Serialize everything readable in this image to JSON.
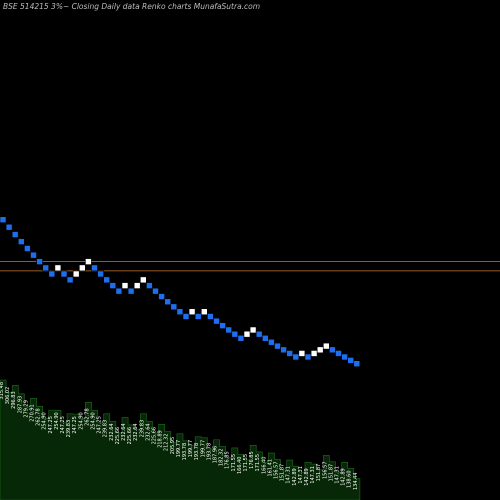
{
  "header": {
    "title": "BSE 514215 3%~  Closing Daily data  Renko  charts MunafaSutra.com"
  },
  "colors": {
    "background": "#000000",
    "brick_down": "#1e6ff0",
    "brick_up": "#ffffff",
    "reference_line": "#c87832",
    "volume_fill": "#062806",
    "volume_stroke": "#1f6a1f"
  },
  "chart_data": {
    "type": "renko",
    "brick_size_percent": 3,
    "price_range": [
      98,
      420
    ],
    "reference_lines": [
      {
        "value": 263.5
      },
      {
        "value": 251.5
      }
    ],
    "bricks": [
      {
        "dir": "down",
        "value": 315.48
      },
      {
        "dir": "down",
        "value": 306.02
      },
      {
        "dir": "down",
        "value": 296.83
      },
      {
        "dir": "down",
        "value": 287.93
      },
      {
        "dir": "down",
        "value": 279.29
      },
      {
        "dir": "down",
        "value": 270.91
      },
      {
        "dir": "down",
        "value": 262.78
      },
      {
        "dir": "down",
        "value": 254.9
      },
      {
        "dir": "down",
        "value": 247.25
      },
      {
        "dir": "up",
        "value": 254.9
      },
      {
        "dir": "down",
        "value": 247.25
      },
      {
        "dir": "down",
        "value": 239.83
      },
      {
        "dir": "up",
        "value": 247.25
      },
      {
        "dir": "up",
        "value": 254.9
      },
      {
        "dir": "up",
        "value": 262.78
      },
      {
        "dir": "down",
        "value": 254.9
      },
      {
        "dir": "down",
        "value": 247.25
      },
      {
        "dir": "down",
        "value": 239.83
      },
      {
        "dir": "down",
        "value": 232.64
      },
      {
        "dir": "down",
        "value": 225.66
      },
      {
        "dir": "up",
        "value": 232.64
      },
      {
        "dir": "down",
        "value": 225.66
      },
      {
        "dir": "up",
        "value": 232.64
      },
      {
        "dir": "up",
        "value": 239.83
      },
      {
        "dir": "down",
        "value": 232.64
      },
      {
        "dir": "down",
        "value": 225.66
      },
      {
        "dir": "down",
        "value": 218.89
      },
      {
        "dir": "down",
        "value": 212.32
      },
      {
        "dir": "down",
        "value": 205.95
      },
      {
        "dir": "down",
        "value": 199.77
      },
      {
        "dir": "down",
        "value": 193.78
      },
      {
        "dir": "up",
        "value": 199.77
      },
      {
        "dir": "down",
        "value": 193.78
      },
      {
        "dir": "up",
        "value": 199.77
      },
      {
        "dir": "down",
        "value": 193.78
      },
      {
        "dir": "down",
        "value": 187.96
      },
      {
        "dir": "down",
        "value": 182.32
      },
      {
        "dir": "down",
        "value": 176.85
      },
      {
        "dir": "down",
        "value": 171.55
      },
      {
        "dir": "down",
        "value": 166.4
      },
      {
        "dir": "up",
        "value": 171.55
      },
      {
        "dir": "up",
        "value": 176.85
      },
      {
        "dir": "down",
        "value": 171.55
      },
      {
        "dir": "down",
        "value": 166.4
      },
      {
        "dir": "down",
        "value": 161.41
      },
      {
        "dir": "down",
        "value": 156.57
      },
      {
        "dir": "down",
        "value": 151.87
      },
      {
        "dir": "down",
        "value": 147.31
      },
      {
        "dir": "down",
        "value": 142.89
      },
      {
        "dir": "up",
        "value": 147.31
      },
      {
        "dir": "down",
        "value": 142.89
      },
      {
        "dir": "up",
        "value": 147.31
      },
      {
        "dir": "up",
        "value": 151.87
      },
      {
        "dir": "up",
        "value": 156.57
      },
      {
        "dir": "down",
        "value": 151.87
      },
      {
        "dir": "down",
        "value": 147.31
      },
      {
        "dir": "down",
        "value": 142.89
      },
      {
        "dir": "down",
        "value": 138.6
      },
      {
        "dir": "down",
        "value": 134.44
      }
    ],
    "volume_labels": [
      "315.48",
      "306.02",
      "296.83",
      "287.93",
      "279.29",
      "270.91",
      "262.78",
      "254.90",
      "247.25",
      "254.90",
      "247.25",
      "239.83",
      "247.25",
      "254.90",
      "262.78",
      "254.90",
      "247.25",
      "239.83",
      "232.64",
      "225.66",
      "232.64",
      "225.66",
      "232.64",
      "239.83",
      "232.64",
      "225.66",
      "218.89",
      "212.32",
      "205.95",
      "199.77",
      "193.78",
      "199.77",
      "193.78",
      "199.77",
      "193.78",
      "187.96",
      "182.32",
      "176.85",
      "171.55",
      "166.40",
      "171.55",
      "176.85",
      "171.55",
      "166.40",
      "161.41",
      "156.57",
      "151.87",
      "147.31",
      "142.89",
      "147.31",
      "142.89",
      "147.31",
      "151.87",
      "156.57",
      "151.87",
      "147.31",
      "142.89",
      "138.60",
      "134.44"
    ]
  }
}
